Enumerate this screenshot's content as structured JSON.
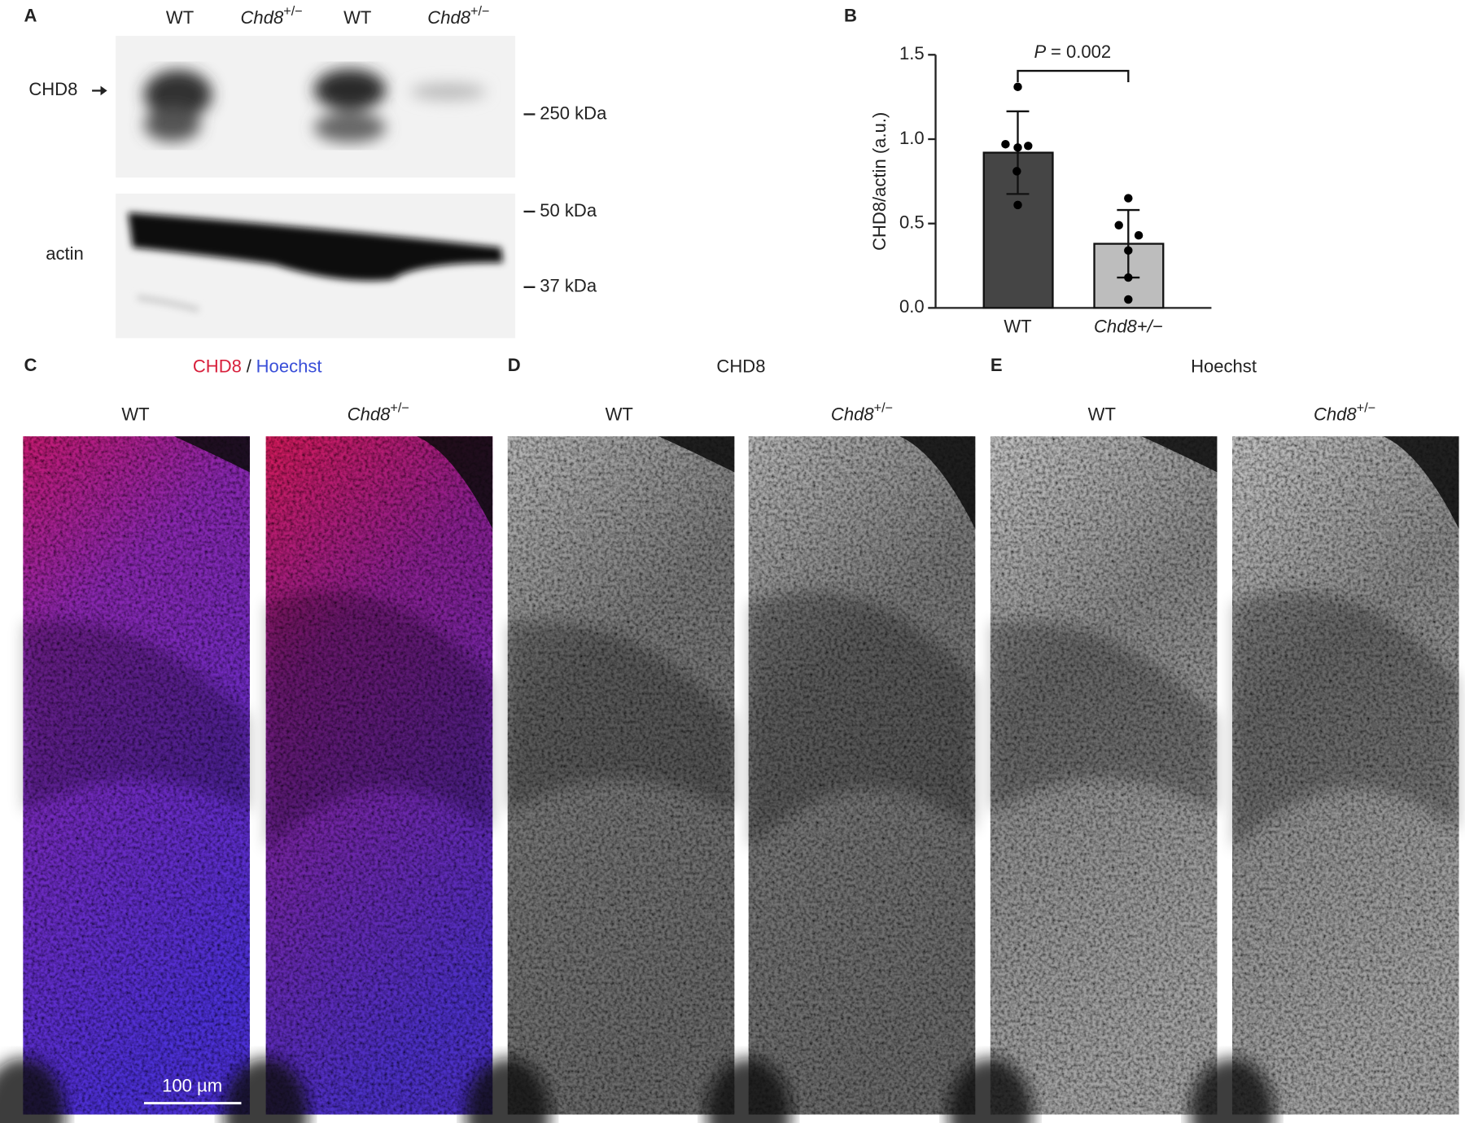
{
  "panel_labels": [
    "A",
    "B",
    "C",
    "D",
    "E"
  ],
  "blot": {
    "lanes": [
      "WT",
      {
        "gene": "Chd8",
        "allele": "+/−"
      },
      "WT",
      {
        "gene": "Chd8",
        "allele": "+/−"
      }
    ],
    "rows": [
      "CHD8",
      "actin"
    ],
    "markers": [
      "250 kDa",
      "50 kDa",
      "37 kDa"
    ]
  },
  "chart_data": {
    "type": "bar",
    "categories": [
      "WT",
      "Chd8+/−"
    ],
    "values": [
      0.92,
      0.38
    ],
    "errors": [
      0.245,
      0.2
    ],
    "colors": [
      "#454545",
      "#bdbdbd"
    ],
    "points": [
      [
        1.31,
        0.97,
        0.96,
        0.95,
        0.81,
        0.61
      ],
      [
        0.65,
        0.49,
        0.43,
        0.34,
        0.18,
        0.05
      ]
    ],
    "ylabel": "CHD8/actin (a.u.)",
    "ylim": [
      0,
      1.5
    ],
    "yticks": [
      {
        "value": 0,
        "label": "0.0"
      },
      0.5,
      {
        "value": 1,
        "label": "1.0"
      },
      1.5
    ],
    "annotation": {
      "italic": "P",
      "text": "= 0.002"
    }
  },
  "imaging": {
    "titles": [
      [
        {
          "text": "CHD8",
          "color": "#d8203c"
        },
        {
          "text": "/",
          "color": "#222222"
        },
        {
          "text": "Hoechst",
          "color": "#3a4fd8"
        }
      ],
      [
        {
          "text": "CHD8",
          "color": "#222222"
        }
      ],
      [
        {
          "text": "Hoechst",
          "color": "#222222"
        }
      ]
    ],
    "columns": [
      "WT",
      {
        "gene": "Chd8",
        "allele": "+/−"
      }
    ],
    "scale_bar": "100 µm"
  }
}
